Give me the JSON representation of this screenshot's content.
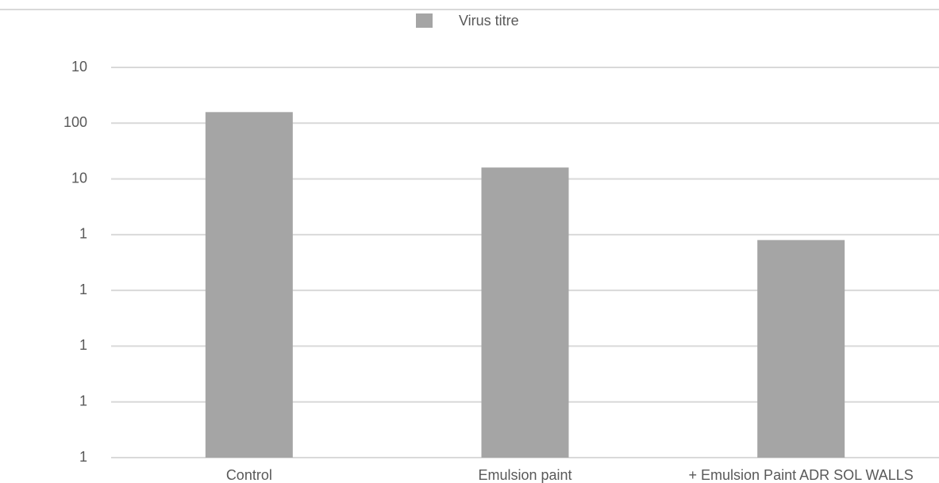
{
  "chart_data": {
    "type": "bar",
    "log_y": true,
    "grid": true,
    "legend": "top",
    "categories": [
      "Control",
      "Emulsion paint",
      "+ Emulsion Paint ADR SOL WALLS"
    ],
    "series": [
      {
        "name": "Virus titre",
        "color": "#a5a5a5",
        "values": [
          158,
          16,
          0.8
        ]
      }
    ],
    "ylim": [
      0.0001,
      1000
    ],
    "yticks": [
      {
        "value": 0.0001,
        "label": "1"
      },
      {
        "value": 0.001,
        "label": "1"
      },
      {
        "value": 0.01,
        "label": "1"
      },
      {
        "value": 0.1,
        "label": "1"
      },
      1,
      10,
      100,
      {
        "value": 1000,
        "label": "10"
      }
    ]
  }
}
